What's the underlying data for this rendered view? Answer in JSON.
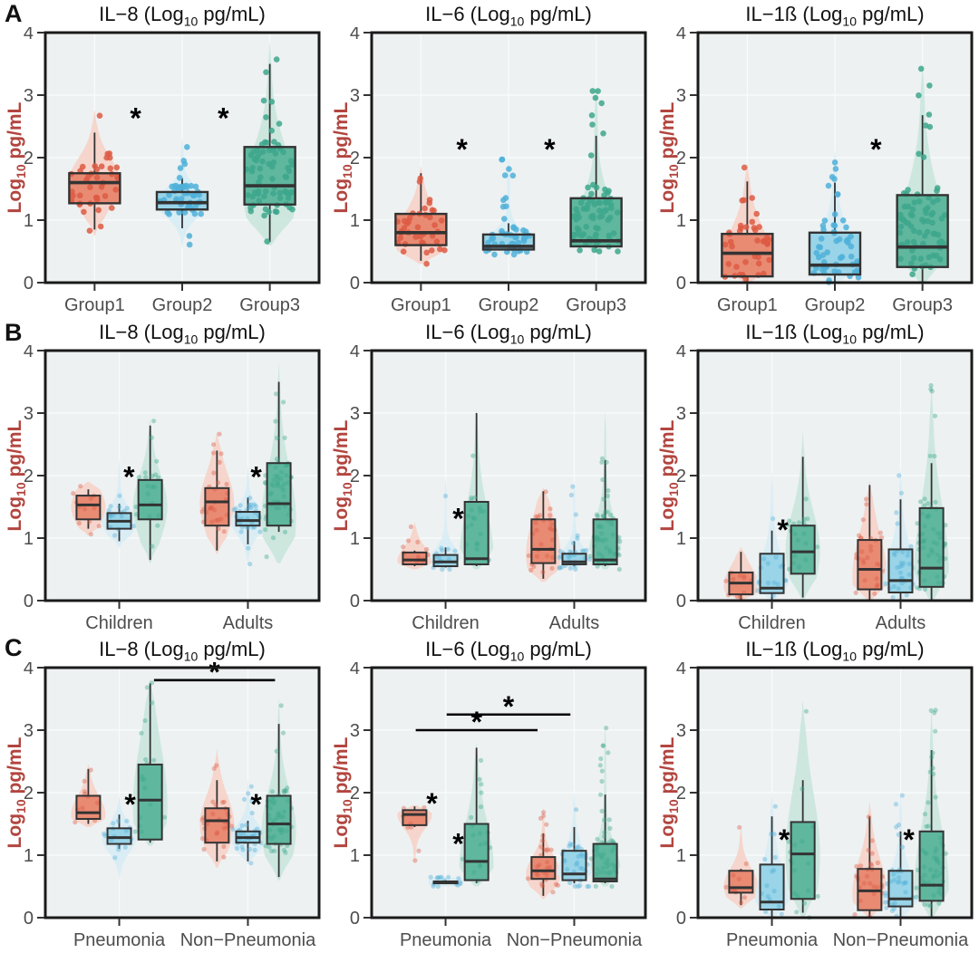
{
  "figure": {
    "row_labels": [
      "A",
      "B",
      "C"
    ],
    "y_axis": {
      "label_pre": "Log",
      "label_sub": "10",
      "label_post": " pg/mL",
      "ticks": [
        0,
        1,
        2,
        3,
        4
      ],
      "min": 0,
      "max": 4,
      "label_color": "#b2453f",
      "tick_color": "#4d4d4d"
    },
    "series_colors": {
      "red": {
        "point": "#dd5a43",
        "box": "#e98a73",
        "violin": "#f6d2c8"
      },
      "blue": {
        "point": "#4fb0d8",
        "box": "#99d4e8",
        "violin": "#d7ecf5"
      },
      "green": {
        "point": "#3da78c",
        "box": "#5fb79e",
        "violin": "#c9e6dd"
      }
    },
    "panel_bg": "#edf1f2",
    "grid_color": "#f8fafb",
    "box_stroke": "#333333",
    "border_color": "#1a1a1a",
    "significance_marker": "*"
  },
  "chart_data": [
    {
      "row": "A",
      "type": "violin-box",
      "title": {
        "pre": "IL−8 (Log",
        "sub": "10",
        "post": " pg/mL)"
      },
      "categories": [
        "Group1",
        "Group2",
        "Group3"
      ],
      "boxes": [
        {
          "cat": 0,
          "series": "red",
          "lo": 0.85,
          "q1": 1.27,
          "med": 1.6,
          "q3": 1.75,
          "hi": 2.4,
          "vlo": 0.75,
          "vhi": 2.75,
          "n": 40
        },
        {
          "cat": 1,
          "series": "blue",
          "lo": 0.87,
          "q1": 1.17,
          "med": 1.28,
          "q3": 1.45,
          "hi": 1.67,
          "vlo": 0.55,
          "vhi": 2.3,
          "n": 48
        },
        {
          "cat": 2,
          "series": "green",
          "lo": 0.65,
          "q1": 1.25,
          "med": 1.55,
          "q3": 2.17,
          "hi": 3.5,
          "vlo": 0.6,
          "vhi": 3.85,
          "n": 75,
          "peak": 1.4
        }
      ],
      "stars": [
        {
          "x": 0.33,
          "y": 2.6
        },
        {
          "x": 0.65,
          "y": 2.6
        }
      ],
      "bars": []
    },
    {
      "row": "A",
      "type": "violin-box",
      "title": {
        "pre": "IL−6 (Log",
        "sub": "10",
        "post": " pg/mL)"
      },
      "categories": [
        "Group1",
        "Group2",
        "Group3"
      ],
      "boxes": [
        {
          "cat": 0,
          "series": "red",
          "lo": 0.35,
          "q1": 0.6,
          "med": 0.8,
          "q3": 1.1,
          "hi": 1.75,
          "vlo": 0.3,
          "vhi": 1.85,
          "n": 40,
          "peak": 0.7
        },
        {
          "cat": 1,
          "series": "blue",
          "lo": 0.5,
          "q1": 0.53,
          "med": 0.58,
          "q3": 0.77,
          "hi": 0.95,
          "vlo": 0.45,
          "vhi": 2.0,
          "n": 48,
          "peak": 0.58
        },
        {
          "cat": 2,
          "series": "green",
          "lo": 0.55,
          "q1": 0.58,
          "med": 0.67,
          "q3": 1.35,
          "hi": 2.35,
          "vlo": 0.5,
          "vhi": 3.1,
          "n": 75,
          "peak": 0.62
        }
      ],
      "stars": [
        {
          "x": 0.33,
          "y": 2.1
        },
        {
          "x": 0.65,
          "y": 2.1
        }
      ],
      "bars": []
    },
    {
      "row": "A",
      "type": "violin-box",
      "title": {
        "pre": "IL−1ß (Log",
        "sub": "10",
        "post": " pg/mL)"
      },
      "categories": [
        "Group1",
        "Group2",
        "Group3"
      ],
      "boxes": [
        {
          "cat": 0,
          "series": "red",
          "lo": 0.02,
          "q1": 0.1,
          "med": 0.47,
          "q3": 0.78,
          "hi": 1.62,
          "vlo": 0.0,
          "vhi": 1.9,
          "n": 40,
          "peak": 0.3
        },
        {
          "cat": 1,
          "series": "blue",
          "lo": 0.02,
          "q1": 0.13,
          "med": 0.28,
          "q3": 0.8,
          "hi": 1.6,
          "vlo": 0.0,
          "vhi": 2.1,
          "n": 55,
          "peak": 0.2
        },
        {
          "cat": 2,
          "series": "green",
          "lo": 0.02,
          "q1": 0.25,
          "med": 0.57,
          "q3": 1.4,
          "hi": 2.68,
          "vlo": 0.0,
          "vhi": 3.5,
          "n": 75,
          "peak": 0.5
        }
      ],
      "stars": [
        {
          "x": 0.65,
          "y": 2.1
        }
      ],
      "bars": []
    },
    {
      "row": "B",
      "type": "violin-box",
      "title": {
        "pre": "IL−8 (Log",
        "sub": "10",
        "post": " pg/mL)"
      },
      "categories": [
        "Children",
        "Adults"
      ],
      "boxes": [
        {
          "cat": 0,
          "series": "red",
          "lo": 1.15,
          "q1": 1.3,
          "med": 1.53,
          "q3": 1.68,
          "hi": 1.78,
          "vlo": 1.05,
          "vhi": 1.9,
          "n": 12,
          "peak": 1.5
        },
        {
          "cat": 0,
          "series": "blue",
          "lo": 0.95,
          "q1": 1.15,
          "med": 1.27,
          "q3": 1.4,
          "hi": 1.55,
          "vlo": 0.85,
          "vhi": 2.25,
          "n": 16,
          "peak": 1.25
        },
        {
          "cat": 0,
          "series": "green",
          "lo": 0.65,
          "q1": 1.3,
          "med": 1.53,
          "q3": 1.93,
          "hi": 2.8,
          "vlo": 0.6,
          "vhi": 2.9,
          "n": 20,
          "peak": 1.5
        },
        {
          "cat": 1,
          "series": "red",
          "lo": 0.8,
          "q1": 1.2,
          "med": 1.58,
          "q3": 1.8,
          "hi": 2.4,
          "vlo": 0.75,
          "vhi": 2.7,
          "n": 28,
          "peak": 1.55
        },
        {
          "cat": 1,
          "series": "blue",
          "lo": 0.9,
          "q1": 1.2,
          "med": 1.28,
          "q3": 1.42,
          "hi": 1.65,
          "vlo": 0.55,
          "vhi": 2.15,
          "n": 32,
          "peak": 1.27
        },
        {
          "cat": 1,
          "series": "green",
          "lo": 1.1,
          "q1": 1.2,
          "med": 1.55,
          "q3": 2.2,
          "hi": 3.5,
          "vlo": 0.6,
          "vhi": 3.8,
          "n": 55,
          "peak": 1.3
        }
      ],
      "stars": [
        {
          "x": 0.306,
          "y": 1.95
        },
        {
          "x": 0.77,
          "y": 1.95
        }
      ],
      "bars": []
    },
    {
      "row": "B",
      "type": "violin-box",
      "title": {
        "pre": "IL−6 (Log",
        "sub": "10",
        "post": " pg/mL)"
      },
      "categories": [
        "Children",
        "Adults"
      ],
      "boxes": [
        {
          "cat": 0,
          "series": "red",
          "lo": 0.55,
          "q1": 0.58,
          "med": 0.65,
          "q3": 0.77,
          "hi": 0.8,
          "vlo": 0.5,
          "vhi": 1.25,
          "n": 12,
          "peak": 0.63
        },
        {
          "cat": 0,
          "series": "blue",
          "lo": 0.53,
          "q1": 0.55,
          "med": 0.62,
          "q3": 0.73,
          "hi": 0.85,
          "vlo": 0.5,
          "vhi": 1.95,
          "n": 16,
          "peak": 0.6
        },
        {
          "cat": 0,
          "series": "green",
          "lo": 0.55,
          "q1": 0.58,
          "med": 0.67,
          "q3": 1.58,
          "hi": 3.0,
          "vlo": 0.5,
          "vhi": 3.05,
          "n": 20,
          "peak": 0.65
        },
        {
          "cat": 1,
          "series": "red",
          "lo": 0.35,
          "q1": 0.6,
          "med": 0.82,
          "q3": 1.3,
          "hi": 1.75,
          "vlo": 0.3,
          "vhi": 1.8,
          "n": 28,
          "peak": 0.75
        },
        {
          "cat": 1,
          "series": "blue",
          "lo": 0.55,
          "q1": 0.58,
          "med": 0.62,
          "q3": 0.75,
          "hi": 0.95,
          "vlo": 0.5,
          "vhi": 1.9,
          "n": 32,
          "peak": 0.6
        },
        {
          "cat": 1,
          "series": "green",
          "lo": 0.55,
          "q1": 0.58,
          "med": 0.65,
          "q3": 1.3,
          "hi": 2.25,
          "vlo": 0.5,
          "vhi": 3.0,
          "n": 55,
          "peak": 0.62
        }
      ],
      "stars": [
        {
          "x": 0.316,
          "y": 1.28
        }
      ],
      "bars": []
    },
    {
      "row": "B",
      "type": "violin-box",
      "title": {
        "pre": "IL−1ß (Log",
        "sub": "10",
        "post": " pg/mL)"
      },
      "categories": [
        "Children",
        "Adults"
      ],
      "boxes": [
        {
          "cat": 0,
          "series": "red",
          "lo": 0.02,
          "q1": 0.1,
          "med": 0.28,
          "q3": 0.45,
          "hi": 0.78,
          "vlo": 0.0,
          "vhi": 0.85,
          "n": 12,
          "peak": 0.25
        },
        {
          "cat": 0,
          "series": "blue",
          "lo": 0.02,
          "q1": 0.12,
          "med": 0.2,
          "q3": 0.75,
          "hi": 1.12,
          "vlo": 0.0,
          "vhi": 2.05,
          "n": 16,
          "peak": 0.15
        },
        {
          "cat": 0,
          "series": "green",
          "lo": 0.05,
          "q1": 0.43,
          "med": 0.78,
          "q3": 1.2,
          "hi": 2.3,
          "vlo": 0.0,
          "vhi": 2.7,
          "n": 20,
          "peak": 0.8
        },
        {
          "cat": 1,
          "series": "red",
          "lo": 0.02,
          "q1": 0.18,
          "med": 0.5,
          "q3": 0.97,
          "hi": 1.85,
          "vlo": 0.0,
          "vhi": 1.9,
          "n": 28,
          "peak": 0.4
        },
        {
          "cat": 1,
          "series": "blue",
          "lo": 0.02,
          "q1": 0.13,
          "med": 0.32,
          "q3": 0.82,
          "hi": 1.62,
          "vlo": 0.0,
          "vhi": 2.1,
          "n": 32,
          "peak": 0.25
        },
        {
          "cat": 1,
          "series": "green",
          "lo": 0.02,
          "q1": 0.22,
          "med": 0.52,
          "q3": 1.48,
          "hi": 2.2,
          "vlo": 0.0,
          "vhi": 3.45,
          "n": 55,
          "peak": 0.5
        }
      ],
      "stars": [
        {
          "x": 0.31,
          "y": 1.1
        }
      ],
      "bars": []
    },
    {
      "row": "C",
      "type": "violin-box",
      "title": {
        "pre": "IL−8 (Log",
        "sub": "10",
        "post": " pg/mL)"
      },
      "categories": [
        "Pneumonia",
        "Non−Pneumonia"
      ],
      "boxes": [
        {
          "cat": 0,
          "series": "red",
          "lo": 1.5,
          "q1": 1.58,
          "med": 1.68,
          "q3": 1.95,
          "hi": 2.38,
          "vlo": 1.45,
          "vhi": 2.45,
          "n": 10,
          "peak": 1.65
        },
        {
          "cat": 0,
          "series": "blue",
          "lo": 1.1,
          "q1": 1.18,
          "med": 1.28,
          "q3": 1.43,
          "hi": 1.65,
          "vlo": 0.6,
          "vhi": 1.95,
          "n": 15,
          "peak": 1.27
        },
        {
          "cat": 0,
          "series": "green",
          "lo": 1.2,
          "q1": 1.25,
          "med": 1.88,
          "q3": 2.45,
          "hi": 3.75,
          "vlo": 1.15,
          "vhi": 3.8,
          "n": 18,
          "peak": 1.8
        },
        {
          "cat": 1,
          "series": "red",
          "lo": 0.9,
          "q1": 1.2,
          "med": 1.55,
          "q3": 1.75,
          "hi": 2.2,
          "vlo": 0.8,
          "vhi": 2.7,
          "n": 28,
          "peak": 1.5
        },
        {
          "cat": 1,
          "series": "blue",
          "lo": 0.9,
          "q1": 1.2,
          "med": 1.28,
          "q3": 1.38,
          "hi": 1.55,
          "vlo": 0.85,
          "vhi": 2.2,
          "n": 32,
          "peak": 1.27
        },
        {
          "cat": 1,
          "series": "green",
          "lo": 0.65,
          "q1": 1.18,
          "med": 1.5,
          "q3": 1.95,
          "hi": 3.1,
          "vlo": 0.6,
          "vhi": 3.5,
          "n": 55,
          "peak": 1.4
        }
      ],
      "stars": [
        {
          "x": 0.31,
          "y": 1.78
        },
        {
          "x": 0.77,
          "y": 1.78
        }
      ],
      "bars": [
        {
          "x1": 0.397,
          "x2": 0.839,
          "y": 3.8,
          "star": true
        }
      ]
    },
    {
      "row": "C",
      "type": "violin-box",
      "title": {
        "pre": "IL−6 (Log",
        "sub": "10",
        "post": " pg/mL)"
      },
      "categories": [
        "Pneumonia",
        "Non−Pneumonia"
      ],
      "boxes": [
        {
          "cat": 0,
          "series": "red",
          "lo": 1.45,
          "q1": 1.48,
          "med": 1.65,
          "q3": 1.72,
          "hi": 1.78,
          "vlo": 0.9,
          "vhi": 1.8,
          "n": 8,
          "peak": 1.65
        },
        {
          "cat": 0,
          "series": "blue",
          "lo": 0.55,
          "q1": 0.55,
          "med": 0.57,
          "q3": 0.58,
          "hi": 0.6,
          "vlo": 0.5,
          "vhi": 0.65,
          "n": 15,
          "peak": 0.57
        },
        {
          "cat": 0,
          "series": "green",
          "lo": 0.55,
          "q1": 0.6,
          "med": 0.9,
          "q3": 1.5,
          "hi": 2.72,
          "vlo": 0.5,
          "vhi": 2.8,
          "n": 18,
          "peak": 0.8
        },
        {
          "cat": 1,
          "series": "red",
          "lo": 0.35,
          "q1": 0.62,
          "med": 0.75,
          "q3": 0.97,
          "hi": 1.35,
          "vlo": 0.3,
          "vhi": 1.75,
          "n": 28,
          "peak": 0.7
        },
        {
          "cat": 1,
          "series": "blue",
          "lo": 0.55,
          "q1": 0.6,
          "med": 0.7,
          "q3": 1.07,
          "hi": 1.45,
          "vlo": 0.5,
          "vhi": 2.0,
          "n": 32,
          "peak": 0.65
        },
        {
          "cat": 1,
          "series": "green",
          "lo": 0.55,
          "q1": 0.58,
          "med": 0.62,
          "q3": 1.18,
          "hi": 1.97,
          "vlo": 0.5,
          "vhi": 3.05,
          "n": 55,
          "peak": 0.6
        }
      ],
      "stars": [
        {
          "x": 0.22,
          "y": 1.8
        },
        {
          "x": 0.316,
          "y": 1.15
        }
      ],
      "bars": [
        {
          "x1": 0.161,
          "x2": 0.606,
          "y": 3.0,
          "star": true
        },
        {
          "x1": 0.274,
          "x2": 0.726,
          "y": 3.25,
          "star": true
        }
      ]
    },
    {
      "row": "C",
      "type": "violin-box",
      "title": {
        "pre": "IL−1ß (Log",
        "sub": "10",
        "post": " pg/mL)"
      },
      "categories": [
        "Pneumonia",
        "Non−Pneumonia"
      ],
      "boxes": [
        {
          "cat": 0,
          "series": "red",
          "lo": 0.2,
          "q1": 0.4,
          "med": 0.48,
          "q3": 0.75,
          "hi": 0.78,
          "vlo": 0.15,
          "vhi": 1.45,
          "n": 10,
          "peak": 0.5
        },
        {
          "cat": 0,
          "series": "blue",
          "lo": 0.02,
          "q1": 0.13,
          "med": 0.25,
          "q3": 0.85,
          "hi": 1.62,
          "vlo": 0.0,
          "vhi": 2.0,
          "n": 15,
          "peak": 0.2
        },
        {
          "cat": 0,
          "series": "green",
          "lo": 0.08,
          "q1": 0.3,
          "med": 1.02,
          "q3": 1.53,
          "hi": 2.2,
          "vlo": 0.0,
          "vhi": 3.45,
          "n": 18,
          "peak": 1.0
        },
        {
          "cat": 1,
          "series": "red",
          "lo": 0.02,
          "q1": 0.12,
          "med": 0.43,
          "q3": 0.78,
          "hi": 1.62,
          "vlo": 0.0,
          "vhi": 1.85,
          "n": 28,
          "peak": 0.4
        },
        {
          "cat": 1,
          "series": "blue",
          "lo": 0.02,
          "q1": 0.18,
          "med": 0.3,
          "q3": 0.75,
          "hi": 1.38,
          "vlo": 0.0,
          "vhi": 2.0,
          "n": 32,
          "peak": 0.25
        },
        {
          "cat": 1,
          "series": "green",
          "lo": 0.02,
          "q1": 0.27,
          "med": 0.52,
          "q3": 1.38,
          "hi": 2.68,
          "vlo": 0.0,
          "vhi": 3.35,
          "n": 55,
          "peak": 0.5
        }
      ],
      "stars": [
        {
          "x": 0.315,
          "y": 1.22
        },
        {
          "x": 0.77,
          "y": 1.22
        }
      ],
      "bars": []
    }
  ]
}
